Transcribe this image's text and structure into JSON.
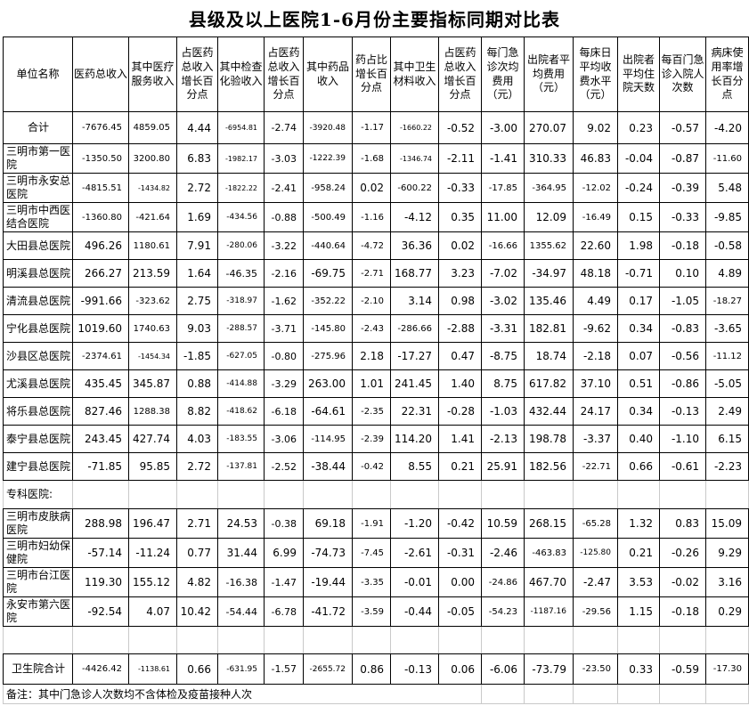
{
  "title": "县级及以上医院1-6月份主要指标同期对比表",
  "note": "备注：其中门急诊人次数均不含体检及疫苗接种人次",
  "colors": {
    "border": "#000000",
    "gridline": "#c9c9c9",
    "background": "#ffffff",
    "text": "#000000"
  },
  "columns": [
    "单位名称",
    "医药总收入",
    "其中医疗服务收入",
    "占医药总收入增长百分点",
    "其中检查化验收入",
    "占医药总收入增长百分点",
    "其中药品收入",
    "药占比增长百分点",
    "其中卫生材料收入",
    "占医药总收入增长百分点",
    "每门急诊次均费用（元）",
    "出院者平均费用（元）",
    "每床日平均收费水平（元）",
    "出院者平均住院天数",
    "每百门急诊入院人次数",
    "病床使用率增长百分点"
  ],
  "rows": [
    {
      "type": "total",
      "center": true,
      "name": "合计",
      "values": [
        "-7676.45",
        "4859.05",
        "4.44",
        "-6954.81",
        "-2.74",
        "-3920.48",
        "-1.17",
        "-1660.22",
        "-0.52",
        "-3.00",
        "270.07",
        "9.02",
        "0.23",
        "-0.57",
        "-4.20"
      ]
    },
    {
      "type": "data",
      "name": "三明市第一医院",
      "values": [
        "-1350.50",
        "3200.80",
        "6.83",
        "-1982.17",
        "-3.03",
        "-1222.39",
        "-1.68",
        "-1346.74",
        "-2.11",
        "-1.41",
        "310.33",
        "46.83",
        "-0.04",
        "-0.87",
        "-11.60"
      ]
    },
    {
      "type": "data",
      "name": "三明市永安总医院",
      "values": [
        "-4815.51",
        "-1434.82",
        "2.72",
        "-1822.22",
        "-2.41",
        "-958.24",
        "0.02",
        "-600.22",
        "-0.33",
        "-17.85",
        "-364.95",
        "-12.02",
        "-0.24",
        "-0.39",
        "5.48"
      ]
    },
    {
      "type": "data",
      "name": "三明市中西医结合医院",
      "values": [
        "-1360.80",
        "-421.64",
        "1.69",
        "-434.56",
        "-0.88",
        "-500.49",
        "-1.16",
        "-4.12",
        "0.35",
        "11.00",
        "12.09",
        "-16.49",
        "0.15",
        "-0.33",
        "-9.85"
      ]
    },
    {
      "type": "data",
      "name": "大田县总医院",
      "values": [
        "496.26",
        "1180.61",
        "7.91",
        "-280.06",
        "-3.22",
        "-440.64",
        "-4.72",
        "36.36",
        "0.02",
        "-16.66",
        "1355.62",
        "22.60",
        "1.98",
        "-0.18",
        "-0.58"
      ]
    },
    {
      "type": "data",
      "name": "明溪县总医院",
      "values": [
        "266.27",
        "213.59",
        "1.64",
        "-46.35",
        "-2.16",
        "-69.75",
        "-2.71",
        "168.77",
        "3.23",
        "-7.02",
        "-34.97",
        "48.18",
        "-0.71",
        "0.10",
        "4.89"
      ]
    },
    {
      "type": "data",
      "name": "清流县总医院",
      "values": [
        "-991.66",
        "-323.62",
        "2.75",
        "-318.97",
        "-1.62",
        "-352.22",
        "-2.10",
        "3.14",
        "0.98",
        "-3.02",
        "135.46",
        "4.49",
        "0.17",
        "-1.05",
        "-18.27"
      ]
    },
    {
      "type": "data",
      "name": "宁化县总医院",
      "values": [
        "1019.60",
        "1740.63",
        "9.03",
        "-288.57",
        "-3.71",
        "-145.80",
        "-2.43",
        "-286.66",
        "-2.88",
        "-3.31",
        "182.81",
        "-9.62",
        "0.34",
        "-0.83",
        "-3.65"
      ]
    },
    {
      "type": "data",
      "name": "沙县区总医院",
      "values": [
        "-2374.61",
        "-1454.34",
        "-1.85",
        "-627.05",
        "-0.80",
        "-275.96",
        "2.18",
        "-17.27",
        "0.47",
        "-8.75",
        "18.74",
        "-2.18",
        "0.07",
        "-0.56",
        "-11.12"
      ]
    },
    {
      "type": "data",
      "name": "尤溪县总医院",
      "values": [
        "435.45",
        "345.87",
        "0.88",
        "-414.88",
        "-3.29",
        "263.00",
        "1.01",
        "241.45",
        "1.40",
        "8.75",
        "617.82",
        "37.10",
        "0.51",
        "-0.86",
        "-5.05"
      ]
    },
    {
      "type": "data",
      "name": "将乐县总医院",
      "values": [
        "827.46",
        "1288.38",
        "8.82",
        "-418.62",
        "-6.18",
        "-64.61",
        "-2.35",
        "22.31",
        "-0.28",
        "-1.03",
        "432.44",
        "24.17",
        "0.34",
        "-0.13",
        "2.49"
      ]
    },
    {
      "type": "data",
      "name": "泰宁县总医院",
      "values": [
        "243.45",
        "427.74",
        "4.03",
        "-183.55",
        "-3.06",
        "-114.95",
        "-2.39",
        "114.20",
        "1.41",
        "-2.13",
        "198.78",
        "-3.37",
        "0.40",
        "-1.10",
        "6.15"
      ]
    },
    {
      "type": "data",
      "name": "建宁县总医院",
      "values": [
        "-71.85",
        "95.85",
        "2.72",
        "-137.81",
        "-2.52",
        "-38.44",
        "-0.42",
        "8.55",
        "0.21",
        "25.91",
        "182.56",
        "-22.71",
        "0.66",
        "-0.61",
        "-2.23"
      ]
    },
    {
      "type": "section",
      "name": "专科医院:",
      "values": [
        "",
        "",
        "",
        "",
        "",
        "",
        "",
        "",
        "",
        "",
        "",
        "",
        "",
        "",
        ""
      ]
    },
    {
      "type": "data",
      "name": "三明市皮肤病医院",
      "values": [
        "288.98",
        "196.47",
        "2.71",
        "24.53",
        "-0.38",
        "69.18",
        "-1.91",
        "-1.20",
        "-0.42",
        "10.59",
        "268.15",
        "-65.28",
        "1.32",
        "0.83",
        "15.09"
      ]
    },
    {
      "type": "data",
      "name": "三明市妇幼保健院",
      "values": [
        "-57.14",
        "-11.24",
        "0.77",
        "31.44",
        "6.99",
        "-74.73",
        "-7.45",
        "-2.61",
        "-0.31",
        "-2.46",
        "-463.83",
        "-125.80",
        "0.21",
        "-0.26",
        "9.29"
      ]
    },
    {
      "type": "data",
      "name": "三明市台江医院",
      "values": [
        "119.30",
        "155.12",
        "4.82",
        "-16.38",
        "-1.47",
        "-19.44",
        "-3.35",
        "-0.01",
        "0.00",
        "-24.86",
        "467.70",
        "-2.47",
        "3.53",
        "-0.02",
        "3.16"
      ]
    },
    {
      "type": "data",
      "name": "永安市第六医院",
      "values": [
        "-92.54",
        "4.07",
        "10.42",
        "-54.44",
        "-6.78",
        "-41.72",
        "-3.59",
        "-0.44",
        "-0.05",
        "-54.23",
        "-1187.16",
        "-29.56",
        "1.15",
        "-0.18",
        "0.29"
      ]
    },
    {
      "type": "empty",
      "name": "",
      "values": [
        "",
        "",
        "",
        "",
        "",
        "",
        "",
        "",
        "",
        "",
        "",
        "",
        "",
        "",
        ""
      ]
    },
    {
      "type": "hctotal",
      "center": true,
      "name": "卫生院合计",
      "values": [
        "-4426.42",
        "-1138.61",
        "0.66",
        "-631.95",
        "-1.57",
        "-2655.72",
        "0.86",
        "-0.13",
        "0.06",
        "-6.06",
        "-73.79",
        "-23.50",
        "0.33",
        "-0.59",
        "-17.30"
      ]
    }
  ]
}
